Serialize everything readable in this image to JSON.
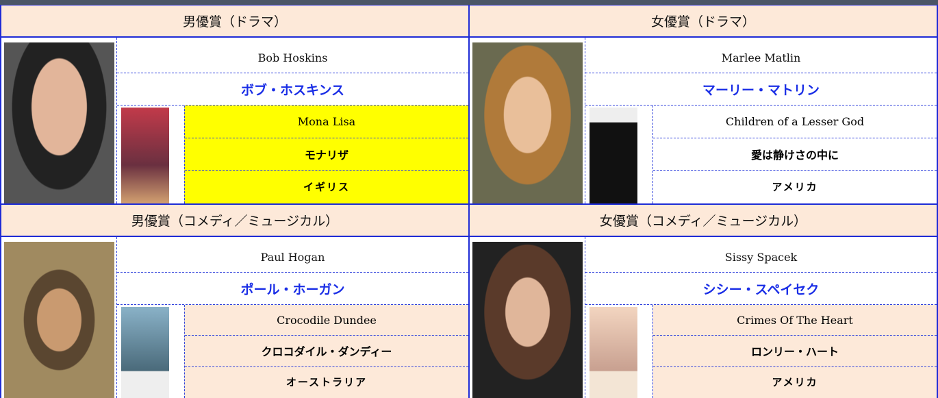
{
  "cells": [
    {
      "category": "男優賞（ドラマ）",
      "name_en": "Bob Hoskins",
      "name_ja": "ボブ・ホスキンス",
      "film_en": "Mona Lisa",
      "film_ja": "モナリザ",
      "country": "イギリス"
    },
    {
      "category": "女優賞（ドラマ）",
      "name_en": "Marlee Matlin",
      "name_ja": "マーリー・マトリン",
      "film_en": "Children of a Lesser God",
      "film_ja": "愛は静けさの中に",
      "country": "アメリカ"
    },
    {
      "category": "男優賞（コメディ／ミュージカル）",
      "name_en": "Paul Hogan",
      "name_ja": "ポール・ホーガン",
      "film_en": "Crocodile Dundee",
      "film_ja": "クロコダイル・ダンディー",
      "country": "オーストラリア"
    },
    {
      "category": "女優賞（コメディ／ミュージカル）",
      "name_en": "Sissy Spacek",
      "name_ja": "シシー・スペイセク",
      "film_en": "Crimes Of The Heart",
      "film_ja": "ロンリー・ハート",
      "country": "アメリカ"
    }
  ]
}
